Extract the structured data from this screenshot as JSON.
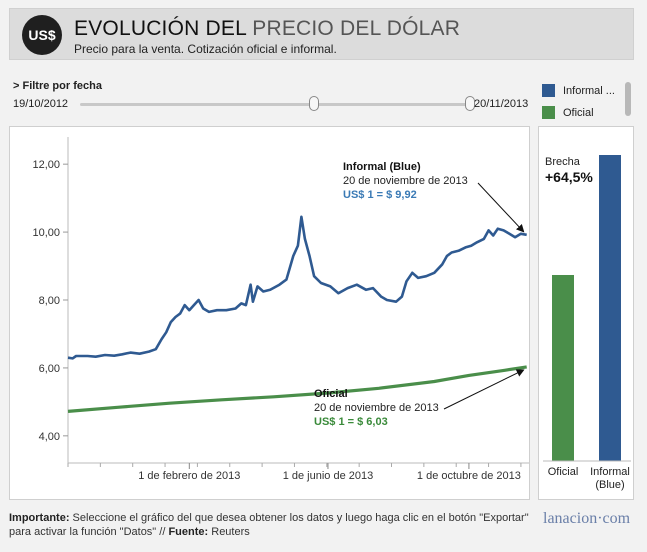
{
  "header": {
    "logo": "US$",
    "title_bold": "EVOLUCIÓN DEL",
    "title_light": "PRECIO DEL DÓLAR",
    "subtitle": "Precio para la venta. Cotización oficial e informal."
  },
  "filter": {
    "label": "> Filtre por fecha",
    "start_date": "19/10/2012",
    "end_date": "20/11/2013",
    "start_fraction": 0.6,
    "end_fraction": 1.0
  },
  "legend": {
    "items": [
      {
        "label": "Informal ...",
        "color": "#2f5a91"
      },
      {
        "label": "Oficial",
        "color": "#4a8e4a"
      }
    ]
  },
  "colors": {
    "informal": "#2f5a91",
    "oficial": "#4a8e4a",
    "informal_label": "#3a7ab5",
    "oficial_label": "#3a8a3a"
  },
  "chart_data": [
    {
      "type": "line",
      "xlabel": "",
      "ylabel": "",
      "ylim": [
        3.2,
        12.8
      ],
      "yticks": [
        4,
        6,
        8,
        10,
        12
      ],
      "ytick_labels": [
        "4,00",
        "6,00",
        "8,00",
        "10,00",
        "12,00"
      ],
      "xlim": [
        "2012-10-19",
        "2013-11-22"
      ],
      "xticks": [
        "2013-02-01",
        "2013-06-01",
        "2013-10-01"
      ],
      "xtick_labels": [
        "1 de febrero de 2013",
        "1 de junio de 2013",
        "1 de octubre de 2013"
      ],
      "series": [
        {
          "name": "Informal (Blue)",
          "color": "#2f5a91",
          "points": [
            [
              "2012-10-19",
              6.3
            ],
            [
              "2012-10-23",
              6.28
            ],
            [
              "2012-10-26",
              6.35
            ],
            [
              "2012-11-05",
              6.35
            ],
            [
              "2012-11-12",
              6.33
            ],
            [
              "2012-11-20",
              6.38
            ],
            [
              "2012-11-28",
              6.36
            ],
            [
              "2012-12-05",
              6.4
            ],
            [
              "2012-12-12",
              6.45
            ],
            [
              "2012-12-20",
              6.42
            ],
            [
              "2012-12-28",
              6.48
            ],
            [
              "2013-01-03",
              6.55
            ],
            [
              "2013-01-08",
              6.85
            ],
            [
              "2013-01-12",
              7.05
            ],
            [
              "2013-01-16",
              7.35
            ],
            [
              "2013-01-20",
              7.5
            ],
            [
              "2013-01-24",
              7.6
            ],
            [
              "2013-01-28",
              7.85
            ],
            [
              "2013-02-01",
              7.7
            ],
            [
              "2013-02-05",
              7.85
            ],
            [
              "2013-02-09",
              8.0
            ],
            [
              "2013-02-13",
              7.75
            ],
            [
              "2013-02-18",
              7.65
            ],
            [
              "2013-02-25",
              7.7
            ],
            [
              "2013-03-05",
              7.7
            ],
            [
              "2013-03-13",
              7.75
            ],
            [
              "2013-03-18",
              7.9
            ],
            [
              "2013-03-22",
              7.85
            ],
            [
              "2013-03-26",
              8.45
            ],
            [
              "2013-03-28",
              7.95
            ],
            [
              "2013-04-01",
              8.4
            ],
            [
              "2013-04-06",
              8.25
            ],
            [
              "2013-04-12",
              8.3
            ],
            [
              "2013-04-20",
              8.45
            ],
            [
              "2013-04-26",
              8.6
            ],
            [
              "2013-05-02",
              9.3
            ],
            [
              "2013-05-06",
              9.6
            ],
            [
              "2013-05-09",
              10.45
            ],
            [
              "2013-05-12",
              9.8
            ],
            [
              "2013-05-16",
              9.3
            ],
            [
              "2013-05-20",
              8.7
            ],
            [
              "2013-05-26",
              8.5
            ],
            [
              "2013-06-03",
              8.4
            ],
            [
              "2013-06-10",
              8.2
            ],
            [
              "2013-06-18",
              8.35
            ],
            [
              "2013-06-26",
              8.45
            ],
            [
              "2013-07-04",
              8.3
            ],
            [
              "2013-07-10",
              8.35
            ],
            [
              "2013-07-17",
              8.1
            ],
            [
              "2013-07-22",
              8.0
            ],
            [
              "2013-07-30",
              7.95
            ],
            [
              "2013-08-04",
              8.1
            ],
            [
              "2013-08-08",
              8.55
            ],
            [
              "2013-08-13",
              8.8
            ],
            [
              "2013-08-18",
              8.65
            ],
            [
              "2013-08-25",
              8.7
            ],
            [
              "2013-09-01",
              8.8
            ],
            [
              "2013-09-08",
              9.05
            ],
            [
              "2013-09-12",
              9.3
            ],
            [
              "2013-09-16",
              9.4
            ],
            [
              "2013-09-22",
              9.45
            ],
            [
              "2013-09-28",
              9.55
            ],
            [
              "2013-10-03",
              9.6
            ],
            [
              "2013-10-08",
              9.7
            ],
            [
              "2013-10-14",
              9.8
            ],
            [
              "2013-10-18",
              10.05
            ],
            [
              "2013-10-22",
              9.9
            ],
            [
              "2013-10-26",
              10.1
            ],
            [
              "2013-10-31",
              10.05
            ],
            [
              "2013-11-05",
              9.95
            ],
            [
              "2013-11-10",
              9.85
            ],
            [
              "2013-11-15",
              9.95
            ],
            [
              "2013-11-20",
              9.92
            ]
          ]
        },
        {
          "name": "Oficial",
          "color": "#4a8e4a",
          "points": [
            [
              "2012-10-19",
              4.72
            ],
            [
              "2012-12-01",
              4.84
            ],
            [
              "2013-01-15",
              4.96
            ],
            [
              "2013-03-01",
              5.06
            ],
            [
              "2013-04-15",
              5.15
            ],
            [
              "2013-06-01",
              5.26
            ],
            [
              "2013-07-15",
              5.4
            ],
            [
              "2013-09-01",
              5.6
            ],
            [
              "2013-10-01",
              5.78
            ],
            [
              "2013-11-01",
              5.93
            ],
            [
              "2013-11-20",
              6.03
            ]
          ]
        }
      ],
      "annotations": [
        {
          "title": "Informal (Blue)",
          "date": "20 de noviembre de 2013",
          "value": "US$ 1 = $ 9,92"
        },
        {
          "title": "Oficial",
          "date": "20 de noviembre de 2013",
          "value": "US$ 1 = $ 6,03"
        }
      ]
    },
    {
      "type": "bar",
      "categories": [
        "Oficial",
        "Informal (Blue)"
      ],
      "category_labels": [
        [
          "Oficial"
        ],
        [
          "Informal",
          "(Blue)"
        ]
      ],
      "values": [
        6.03,
        9.92
      ],
      "ylim": [
        0,
        9.92
      ],
      "annotation_label": "Brecha",
      "annotation_value": "+64,5%"
    }
  ],
  "footer": {
    "important_label": "Importante:",
    "important_text": " Seleccione el gráfico del que desea obtener los datos y luego haga clic en el botón \"Exportar\" para activar la función \"Datos\" //",
    "source_label": "Fuente:",
    "source_text": " Reuters"
  },
  "brand": "lanacion·com"
}
